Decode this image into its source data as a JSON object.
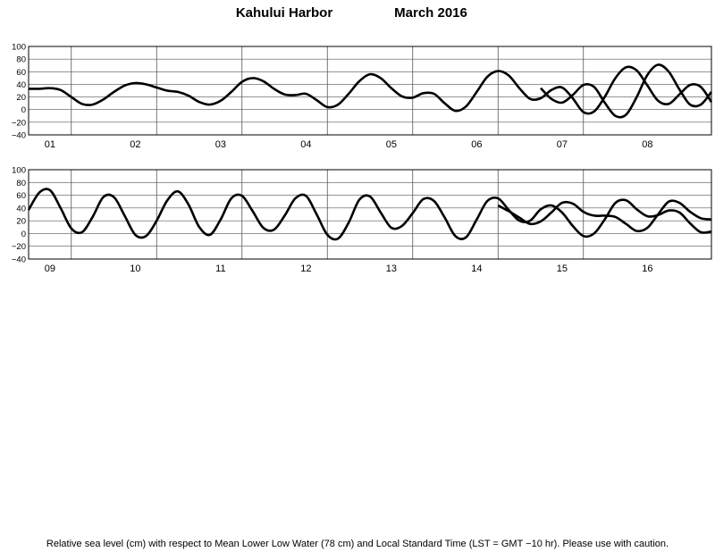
{
  "header": {
    "station": "Kahului Harbor",
    "period": "March   2016"
  },
  "footer": {
    "note": "Relative sea level (cm) with respect to Mean Lower Low Water (78 cm) and Local Standard Time (LST = GMT −10 hr). Please use with caution."
  },
  "colors": {
    "observed": "#000000",
    "predicted": "#d9621a",
    "grid": "#555555"
  },
  "chart_data": {
    "type": "line",
    "title": "Kahului Harbor          March   2016",
    "ylabel": "",
    "ylim": [
      -40,
      100
    ],
    "yticks": [
      "100",
      "80",
      "60",
      "40",
      "20",
      "0",
      "−20",
      "−40"
    ],
    "grid": true,
    "panels": [
      {
        "days": [
          "01",
          "02",
          "03",
          "04",
          "05",
          "06",
          "07",
          "08"
        ],
        "series": [
          {
            "role": "observed",
            "x": [
              0,
              3,
              6,
              9,
              12,
              15,
              18,
              21,
              24,
              27,
              30,
              33,
              36,
              39,
              42,
              45,
              48,
              51,
              54,
              57,
              60,
              63,
              66,
              69,
              72,
              75,
              78,
              81,
              84,
              87,
              90,
              93,
              96,
              99,
              102,
              105,
              108,
              111,
              114,
              117,
              120,
              123,
              126,
              129,
              132,
              135,
              138,
              141,
              144,
              147,
              150,
              153,
              156,
              159,
              162,
              165,
              168,
              171,
              174,
              177,
              180,
              183,
              186,
              189,
              192
            ],
            "y": [
              33,
              33,
              34,
              31,
              20,
              9,
              8,
              16,
              28,
              38,
              42,
              40,
              35,
              30,
              28,
              22,
              12,
              8,
              14,
              28,
              44,
              50,
              45,
              33,
              24,
              23,
              25,
              15,
              4,
              8,
              25,
              45,
              56,
              50,
              34,
              21,
              19,
              26,
              25,
              10,
              -2,
              5,
              28,
              52,
              61,
              54,
              34,
              17,
              18,
              31,
              35,
              18,
              -4,
              -3,
              20,
              50,
              67,
              62,
              38,
              14,
              9,
              24,
              39,
              36,
              12
            ]
          },
          {
            "role": "observed",
            "x": [
              144,
              147,
              150,
              153,
              156,
              159,
              162,
              165,
              168,
              171,
              174,
              177,
              180,
              183,
              186,
              189,
              192
            ],
            "y": [
              34,
              17,
              11,
              23,
              39,
              36,
              11,
              -10,
              -8,
              20,
              55,
              71,
              60,
              32,
              8,
              8,
              28
            ]
          }
        ]
      },
      {
        "days": [
          "09",
          "10",
          "11",
          "12",
          "13",
          "14",
          "15",
          "16"
        ],
        "series": [
          {
            "role": "observed",
            "x": [
              0,
              3,
              6,
              9,
              12,
              15,
              18,
              21,
              24,
              27,
              30,
              33,
              36,
              39,
              42,
              45,
              48,
              51,
              54,
              57,
              60,
              63,
              66,
              69,
              72,
              75,
              78,
              81,
              84,
              87,
              90,
              93,
              96,
              99,
              102,
              105,
              108,
              111,
              114,
              117,
              120,
              123,
              126,
              129,
              132,
              135,
              138,
              141,
              144,
              147,
              150,
              153,
              156,
              159,
              162,
              165,
              168,
              171,
              174,
              177,
              180,
              183,
              186,
              189,
              192
            ],
            "y": [
              37,
              64,
              68,
              40,
              8,
              2,
              26,
              57,
              57,
              28,
              -2,
              -4,
              20,
              52,
              66,
              45,
              10,
              -2,
              22,
              55,
              59,
              35,
              9,
              6,
              28,
              55,
              59,
              30,
              -2,
              -8,
              17,
              53,
              58,
              33,
              9,
              12,
              32,
              54,
              51,
              25,
              -4,
              -6,
              22,
              51,
              55,
              37,
              20,
              20,
              38,
              44,
              33,
              12,
              -4,
              0,
              22,
              48,
              52,
              38,
              27,
              29,
              36,
              33,
              16,
              2,
              3
            ]
          },
          {
            "role": "observed",
            "x": [
              132,
              135,
              138,
              141,
              144,
              147,
              150,
              153,
              156,
              159,
              162,
              165,
              168,
              171,
              174,
              177,
              180,
              183,
              186,
              189,
              192
            ],
            "y": [
              44,
              35,
              25,
              15,
              19,
              33,
              48,
              47,
              34,
              28,
              28,
              26,
              15,
              4,
              9,
              30,
              50,
              48,
              34,
              24,
              22
            ]
          }
        ]
      }
    ]
  }
}
